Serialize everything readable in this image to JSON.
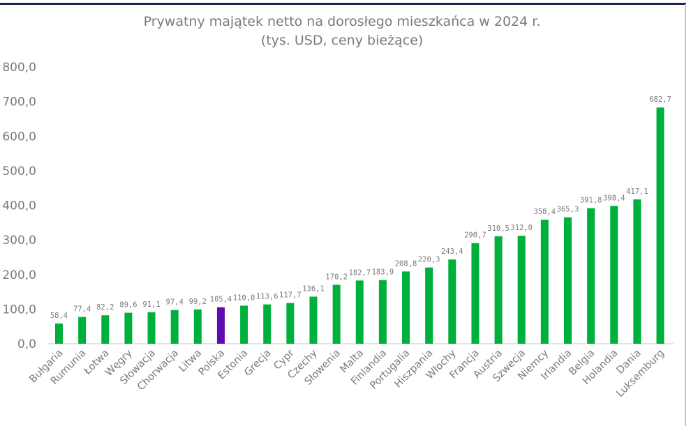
{
  "chart_data": {
    "type": "bar",
    "title": "Prywatny majątek netto na dorosłego mieszkańca w 2024 r.",
    "subtitle": "(tys. USD, ceny bieżące)",
    "categories": [
      "Bułgaria",
      "Rumunia",
      "Łotwa",
      "Węgry",
      "Słowacja",
      "Chorwacja",
      "Litwa",
      "Polska",
      "Estonia",
      "Grecja",
      "Cypr",
      "Czechy",
      "Słowenia",
      "Malta",
      "Finlandia",
      "Portugalia",
      "Hiszpania",
      "Włochy",
      "Francja",
      "Austria",
      "Szwecja",
      "Niemcy",
      "Irlandia",
      "Belgia",
      "Holandia",
      "Dania",
      "Luksemburg"
    ],
    "values": [
      58.4,
      77.4,
      82.2,
      89.6,
      91.1,
      97.4,
      99.2,
      105.4,
      110.0,
      113.6,
      117.7,
      136.1,
      170.2,
      182.7,
      183.9,
      208.8,
      220.3,
      243.4,
      290.7,
      310.5,
      312.0,
      358.4,
      365.3,
      391.8,
      398.4,
      417.1,
      682.7
    ],
    "data_labels": [
      "58,4",
      "77,4",
      "82,2",
      "89,6",
      "91,1",
      "97,4",
      "99,2",
      "105,4",
      "110,0",
      "113,6",
      "117,7",
      "136,1",
      "170,2",
      "182,7",
      "183,9",
      "208,8",
      "220,3",
      "243,4",
      "290,7",
      "310,5",
      "312,0",
      "358,4",
      "365,3",
      "391,8",
      "398,4",
      "417,1",
      "682,7"
    ],
    "ylim": [
      0,
      800
    ],
    "yticks": [
      "0,0",
      "100,0",
      "200,0",
      "300,0",
      "400,0",
      "500,0",
      "600,0",
      "700,0",
      "800,0"
    ],
    "grid": false,
    "legend": "none",
    "colors": {
      "default": "#00b03c",
      "highlight": "#5e0ab0",
      "highlight_category": "Polska",
      "text": "#7a7a7a"
    }
  }
}
